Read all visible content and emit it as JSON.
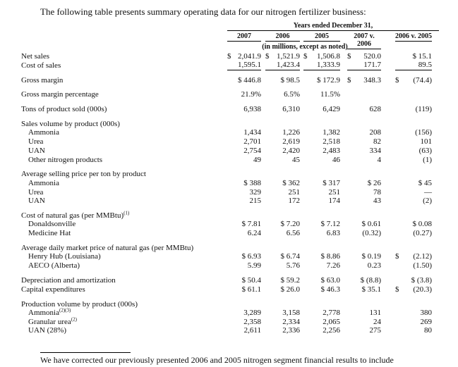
{
  "intro": "The following table presents summary operating data for our nitrogen fertilizer business:",
  "table": {
    "group_header": "Years ended December 31,",
    "columns": [
      "2007",
      "2006",
      "2005",
      "2007 v. 2006",
      "2006 v. 2005"
    ],
    "units": "(in millions, except as noted)",
    "sections": [
      {
        "rows": [
          {
            "label": "Net sales",
            "cells": [
              "$2,041.9",
              "$1,521.9",
              "$1,506.8",
              "$520.0",
              "$ 15.1"
            ]
          },
          {
            "label": "Cost of sales",
            "cells": [
              "1,595.1",
              "1,423.4",
              "1,333.9",
              "171.7",
              "89.5"
            ]
          }
        ]
      },
      {
        "rows": [
          {
            "label": "Gross margin",
            "cells": [
              "$ 446.8",
              "$ 98.5",
              "$ 172.9",
              "$348.3",
              "$(74.4)"
            ]
          }
        ]
      },
      {
        "rows": [
          {
            "label": "Gross margin percentage",
            "cells": [
              "21.9%",
              "6.5%",
              "11.5%",
              null,
              null
            ]
          }
        ]
      },
      {
        "rows": [
          {
            "label": "Tons of product sold (000s)",
            "cells": [
              "6,938",
              "6,310",
              "6,429",
              "628",
              "(119)"
            ]
          }
        ]
      },
      {
        "heading": "Sales volume by product (000s)",
        "rows": [
          {
            "label": "Ammonia",
            "cells": [
              "1,434",
              "1,226",
              "1,382",
              "208",
              "(156)"
            ]
          },
          {
            "label": "Urea",
            "cells": [
              "2,701",
              "2,619",
              "2,518",
              "82",
              "101"
            ]
          },
          {
            "label": "UAN",
            "cells": [
              "2,754",
              "2,420",
              "2,483",
              "334",
              "(63)"
            ]
          },
          {
            "label": "Other nitrogen products",
            "cells": [
              "49",
              "45",
              "46",
              "4",
              "(1)"
            ]
          }
        ]
      },
      {
        "heading": "Average selling price per ton by product",
        "rows": [
          {
            "label": "Ammonia",
            "cells": [
              "$ 388",
              "$ 362",
              "$ 317",
              "$ 26",
              "$ 45"
            ]
          },
          {
            "label": "Urea",
            "cells": [
              "329",
              "251",
              "251",
              "78",
              "—"
            ]
          },
          {
            "label": "UAN",
            "cells": [
              "215",
              "172",
              "174",
              "43",
              "(2)"
            ]
          }
        ]
      },
      {
        "heading": "Cost of natural gas (per MMBtu)",
        "heading_sup": "(1)",
        "rows": [
          {
            "label": "Donaldsonville",
            "cells": [
              "$ 7.81",
              "$ 7.20",
              "$ 7.12",
              "$ 0.61",
              "$ 0.08"
            ]
          },
          {
            "label": "Medicine Hat",
            "cells": [
              "6.24",
              "6.56",
              "6.83",
              "(0.32)",
              "(0.27)"
            ]
          }
        ]
      },
      {
        "heading": "Average daily market price of natural gas (per MMBtu)",
        "rows": [
          {
            "label": "Henry Hub (Louisiana)",
            "cells": [
              "$ 6.93",
              "$ 6.74",
              "$ 8.86",
              "$ 0.19",
              "$(2.12)"
            ]
          },
          {
            "label": "AECO (Alberta)",
            "cells": [
              "5.99",
              "5.76",
              "7.26",
              "0.23",
              "(1.50)"
            ]
          }
        ]
      },
      {
        "rows": [
          {
            "label": "Depreciation and amortization",
            "cells": [
              "$ 50.4",
              "$ 59.2",
              "$ 63.0",
              "$ (8.8)",
              "$ (3.8)"
            ]
          },
          {
            "label": "Capital expenditures",
            "cells": [
              "$ 61.1",
              "$ 26.0",
              "$ 46.3",
              "$ 35.1",
              "$(20.3)"
            ]
          }
        ]
      },
      {
        "heading": "Production volume by product (000s)",
        "rows": [
          {
            "label": "Ammonia",
            "sup": "(2)(3)",
            "cells": [
              "3,289",
              "3,158",
              "2,778",
              "131",
              "380"
            ]
          },
          {
            "label": "Granular urea",
            "sup": "(2)",
            "cells": [
              "2,358",
              "2,334",
              "2,065",
              "24",
              "269"
            ]
          },
          {
            "label": "UAN (28%)",
            "cells": [
              "2,611",
              "2,336",
              "2,256",
              "275",
              "80"
            ]
          }
        ]
      }
    ]
  },
  "footnote": "We have corrected our previously presented 2006 and 2005 nitrogen segment financial results to include"
}
